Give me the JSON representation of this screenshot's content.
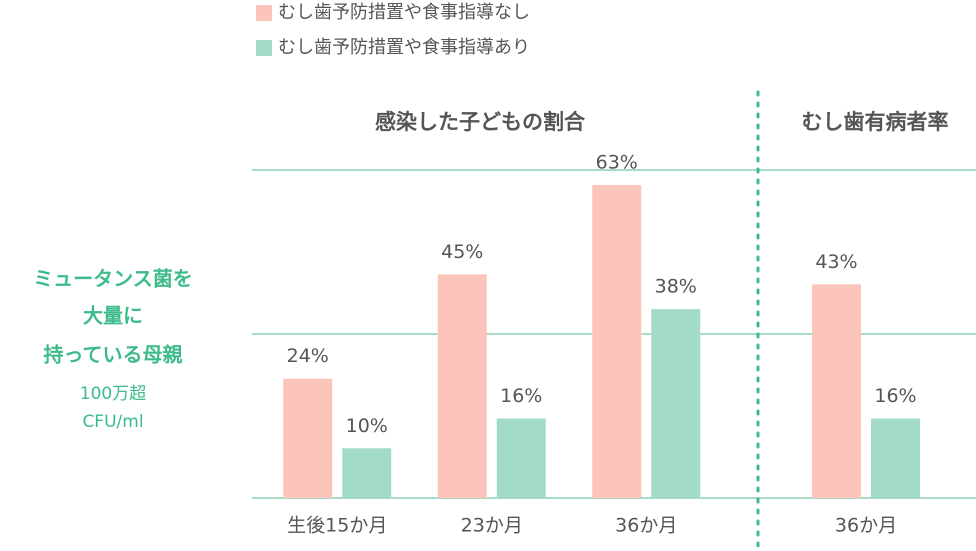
{
  "side_label": {
    "lines": [
      "ミュータンス菌を",
      "大量に",
      "持っている母親"
    ],
    "sub_lines": [
      "100万超",
      "CFU/ml"
    ]
  },
  "chart_data": [
    {
      "type": "bar",
      "title": "感染した子どもの割合",
      "categories": [
        "生後15か月",
        "23か月",
        "36か月"
      ],
      "series": [
        {
          "name": "むし歯予防措置や食事指導なし",
          "color": "#fcc5bb",
          "values": [
            24,
            45,
            63
          ],
          "value_labels": [
            "24%",
            "45%",
            "63%"
          ]
        },
        {
          "name": "むし歯予防措置や食事指導あり",
          "color": "#a3dcc6",
          "values": [
            10,
            16,
            38
          ],
          "value_labels": [
            "10%",
            "16%",
            "38%"
          ]
        }
      ],
      "ylim": [
        0,
        66
      ]
    },
    {
      "type": "bar",
      "title": "むし歯有病者率",
      "categories": [
        "36か月"
      ],
      "series": [
        {
          "color": "#fcc5bb",
          "values": [
            43
          ],
          "value_labels": [
            "43%"
          ]
        },
        {
          "color": "#a3dcc6",
          "values": [
            16
          ],
          "value_labels": [
            "16%"
          ]
        }
      ],
      "ylim": [
        0,
        66
      ]
    }
  ]
}
